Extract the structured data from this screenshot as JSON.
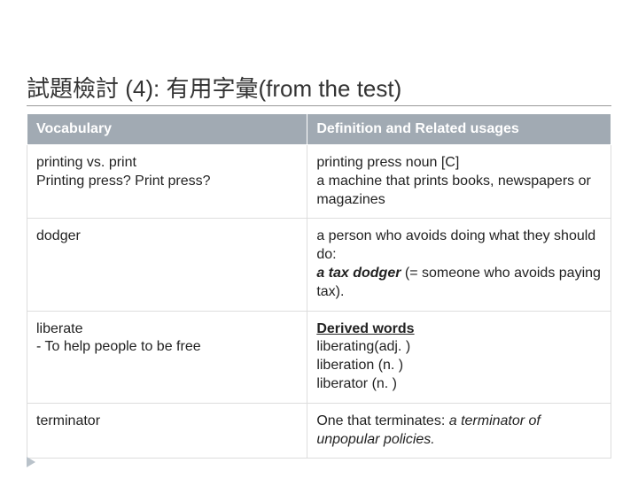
{
  "title": "試題檢討  (4):  有用字彙(from the test)",
  "header_bg": "#a1aab3",
  "header_fg": "#ffffff",
  "columns": [
    "Vocabulary",
    "Definition and Related  usages"
  ],
  "rows": [
    {
      "vocab": "printing vs. print\nPrinting press? Print press?",
      "def_parts": [
        {
          "t": "printing press noun [C]\na machine that prints books, newspapers or magazines"
        }
      ]
    },
    {
      "vocab": "dodger",
      "def_parts": [
        {
          "t": "a person who avoids doing what they should do:\n"
        },
        {
          "t": "a tax dodger",
          "style": "bold italic"
        },
        {
          "t": " (= someone who avoids paying tax)."
        }
      ]
    },
    {
      "vocab": "liberate\n- To help people to be free",
      "def_parts": [
        {
          "t": "Derived words",
          "style": "bold underline"
        },
        {
          "t": "\nliberating(adj. )\nliberation (n. )\nliberator (n. )"
        }
      ]
    },
    {
      "vocab": "terminator",
      "def_parts": [
        {
          "t": "One that terminates: "
        },
        {
          "t": "a terminator of unpopular policies.",
          "style": "italic"
        }
      ]
    }
  ]
}
